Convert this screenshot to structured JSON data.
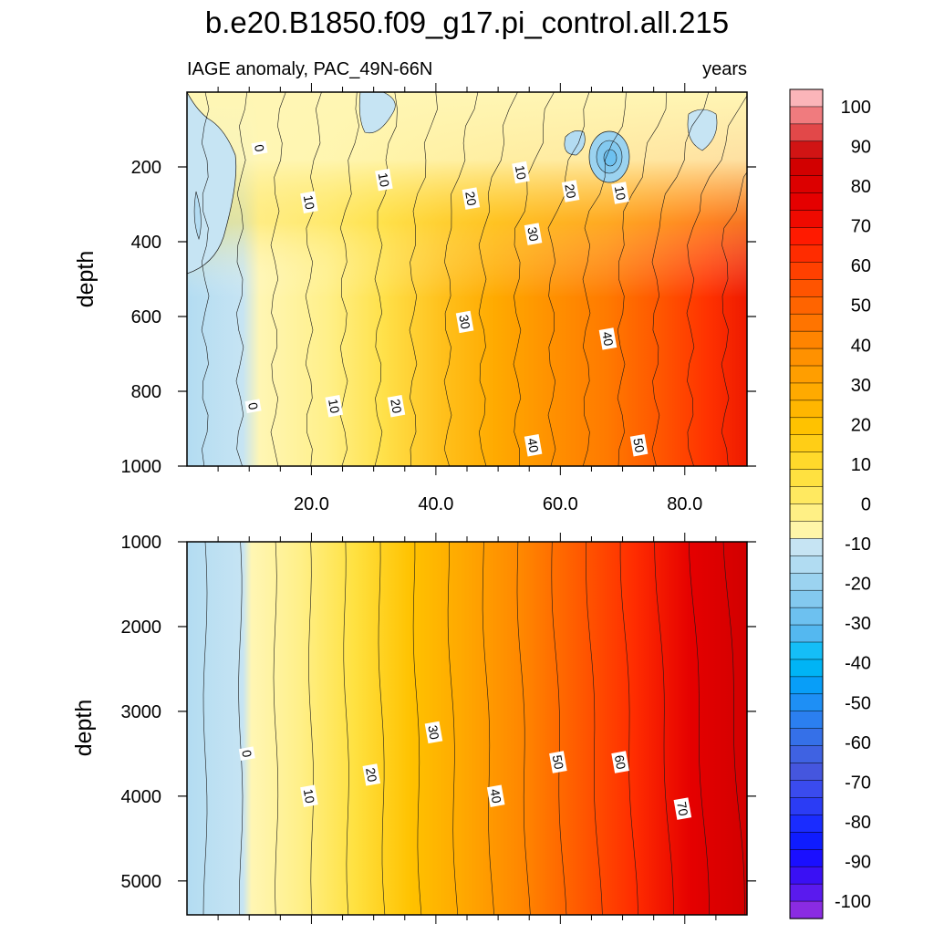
{
  "chart_data": {
    "type": "heatmap",
    "title": "b.e20.B1850.f09_g17.pi_control.all.215",
    "subtitle_left": "IAGE anomaly, PAC_49N-66N",
    "subtitle_right": "years",
    "x_range": [
      0,
      90
    ],
    "x_ticks": [
      "20.0",
      "40.0",
      "60.0",
      "80.0"
    ],
    "x_tick_values": [
      20,
      40,
      60,
      80
    ],
    "panels": [
      {
        "ylabel": "depth",
        "ylim": [
          1000,
          0
        ],
        "y_ticks": [
          "200",
          "400",
          "600",
          "800",
          "1000"
        ],
        "y_tick_values": [
          200,
          400,
          600,
          800,
          1000
        ],
        "contour_labels": [
          {
            "text": "0",
            "x": 11.5,
            "y": 150
          },
          {
            "text": "10",
            "x": 19.5,
            "y": 295
          },
          {
            "text": "10",
            "x": 31.5,
            "y": 235
          },
          {
            "text": "10",
            "x": 53.5,
            "y": 215
          },
          {
            "text": "20",
            "x": 45.5,
            "y": 285
          },
          {
            "text": "20",
            "x": 61.5,
            "y": 265
          },
          {
            "text": "10",
            "x": 69.5,
            "y": 270
          },
          {
            "text": "30",
            "x": 55.5,
            "y": 380
          },
          {
            "text": "30",
            "x": 44.5,
            "y": 615
          },
          {
            "text": "40",
            "x": 67.5,
            "y": 660
          },
          {
            "text": "0",
            "x": 10.5,
            "y": 840
          },
          {
            "text": "10",
            "x": 23.5,
            "y": 840
          },
          {
            "text": "20",
            "x": 33.5,
            "y": 840
          },
          {
            "text": "40",
            "x": 55.5,
            "y": 945
          },
          {
            "text": "50",
            "x": 72.5,
            "y": 945
          }
        ]
      },
      {
        "ylabel": "depth",
        "ylim": [
          5400,
          1000
        ],
        "y_ticks": [
          "1000",
          "2000",
          "3000",
          "4000",
          "5000"
        ],
        "y_tick_values": [
          1000,
          2000,
          3000,
          4000,
          5000
        ],
        "contour_labels": [
          {
            "text": "0",
            "x": 9.5,
            "y": 3500
          },
          {
            "text": "10",
            "x": 19.5,
            "y": 4000
          },
          {
            "text": "20",
            "x": 29.5,
            "y": 3750
          },
          {
            "text": "30",
            "x": 39.5,
            "y": 3250
          },
          {
            "text": "40",
            "x": 49.5,
            "y": 4000
          },
          {
            "text": "50",
            "x": 59.5,
            "y": 3600
          },
          {
            "text": "60",
            "x": 69.5,
            "y": 3600
          },
          {
            "text": "70",
            "x": 79.5,
            "y": 4150
          }
        ]
      }
    ],
    "colorbar": {
      "levels": [
        "100",
        "90",
        "80",
        "70",
        "60",
        "50",
        "40",
        "30",
        "20",
        "10",
        "0",
        "-10",
        "-20",
        "-30",
        "-40",
        "-50",
        "-60",
        "-70",
        "-80",
        "-90",
        "-100"
      ],
      "colors_top_to_bottom": [
        "#fbb5b9",
        "#f07b7e",
        "#e24849",
        "#d11414",
        "#d20000",
        "#dc0000",
        "#e50000",
        "#ef0a00",
        "#ff1a00",
        "#ff2c00",
        "#ff4000",
        "#ff5400",
        "#ff6400",
        "#ff7400",
        "#ff8400",
        "#ff9100",
        "#ff9e00",
        "#ffaa00",
        "#ffb600",
        "#ffc200",
        "#ffce16",
        "#ffd92b",
        "#ffe140",
        "#ffe960",
        "#fff085",
        "#fff6a8",
        "#c6e4f3",
        "#b1dcf2",
        "#9bd3f0",
        "#83c9ef",
        "#6dc1f0",
        "#54b8f0",
        "#15bef7",
        "#00b4f5",
        "#089ef8",
        "#1e8ff5",
        "#2b7ff0",
        "#3570e8",
        "#3f62e2",
        "#4556de",
        "#3a4bee",
        "#2b3cf5",
        "#1a2cff",
        "#0f1cff",
        "#1a0fff",
        "#3a10f4",
        "#5a1aee",
        "#8a2be2"
      ]
    },
    "colors": {
      "contour": "#1a1a1a",
      "background": "#ffffff"
    }
  }
}
